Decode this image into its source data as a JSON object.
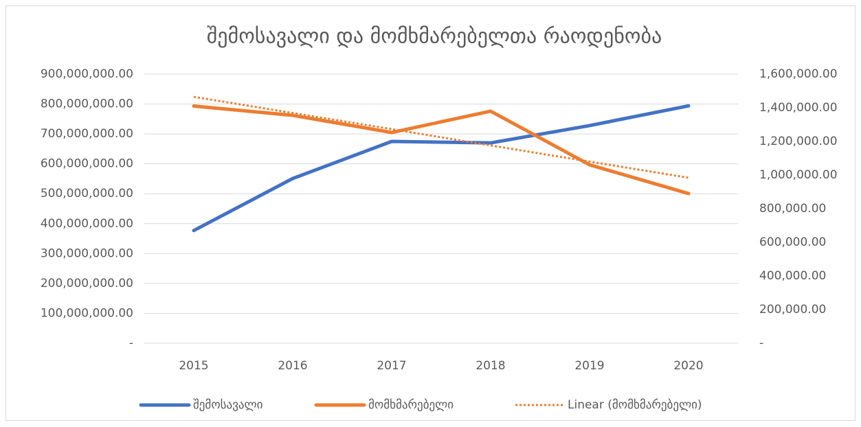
{
  "chart_data": {
    "type": "line",
    "title": "შემოსავალი და მომხმარებელთა რაოდენობა",
    "categories": [
      "2015",
      "2016",
      "2017",
      "2018",
      "2019",
      "2020"
    ],
    "series": [
      {
        "name": "შემოსავალი",
        "color": "#4472c4",
        "values": [
          377000000,
          551000000,
          675000000,
          670000000,
          728000000,
          794000000
        ]
      },
      {
        "name": "მომხმარებელი",
        "color": "#ed7d31",
        "axis": "y2",
        "values": [
          1410000,
          1355000,
          1253000,
          1380000,
          1061000,
          890000
        ]
      },
      {
        "name": "Linear (მომხმარებელი)",
        "color": "#ed7d31",
        "axis": "y2",
        "line_style": "dotted",
        "values": [
          1465000,
          1369000,
          1273000,
          1176000,
          1080000,
          984000
        ]
      }
    ],
    "ylim": [
      0,
      900000000
    ],
    "yticks": [
      {
        "value": 0,
        "label": "-"
      },
      {
        "value": 100000000,
        "label": "100,000,000.00"
      },
      {
        "value": 200000000,
        "label": "200,000,000.00"
      },
      {
        "value": 300000000,
        "label": "300,000,000.00"
      },
      {
        "value": 400000000,
        "label": "400,000,000.00"
      },
      {
        "value": 500000000,
        "label": "500,000,000.00"
      },
      {
        "value": 600000000,
        "label": "600,000,000.00"
      },
      {
        "value": 700000000,
        "label": "700,000,000.00"
      },
      {
        "value": 800000000,
        "label": "800,000,000.00"
      },
      {
        "value": 900000000,
        "label": "900,000,000.00"
      }
    ],
    "y2lim": [
      0,
      1600000
    ],
    "y2ticks": [
      {
        "value": 0,
        "label": "-"
      },
      {
        "value": 200000,
        "label": "200,000.00"
      },
      {
        "value": 400000,
        "label": "400,000.00"
      },
      {
        "value": 600000,
        "label": "600,000.00"
      },
      {
        "value": 800000,
        "label": "800,000.00"
      },
      {
        "value": 1000000,
        "label": "1,000,000.00"
      },
      {
        "value": 1200000,
        "label": "1,200,000.00"
      },
      {
        "value": 1400000,
        "label": "1,400,000.00"
      },
      {
        "value": 1600000,
        "label": "1,600,000.00"
      }
    ],
    "grid": true,
    "legend": "bottom"
  }
}
